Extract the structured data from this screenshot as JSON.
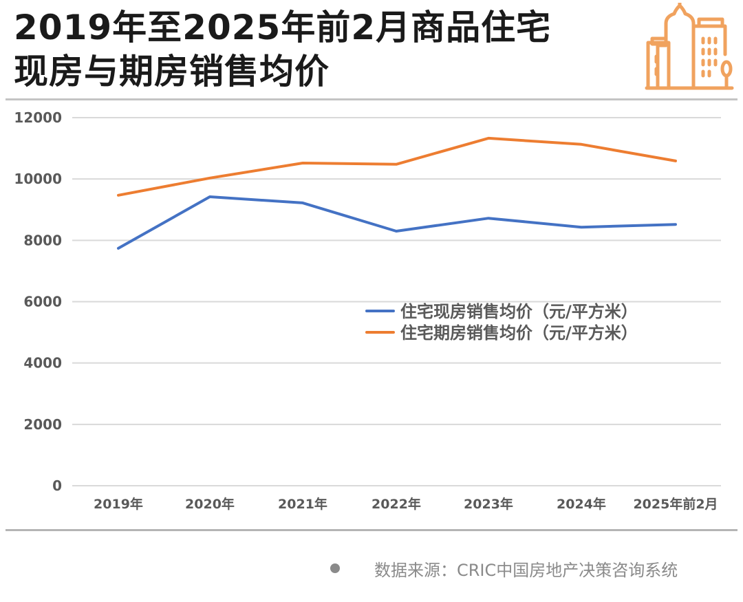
{
  "header": {
    "title_line1": "2019年至2025年前2月商品住宅",
    "title_line2": "现房与期房销售均价",
    "logo_icon": "city-buildings-icon",
    "accent_color": "#f0a25e"
  },
  "footer": {
    "source": "数据来源：CRIC中国房地产决策咨询系统"
  },
  "chart_data": {
    "type": "line",
    "title": "2019年至2025年前2月商品住宅现房与期房销售均价",
    "xlabel": "",
    "ylabel": "",
    "categories": [
      "2019年",
      "2020年",
      "2021年",
      "2022年",
      "2023年",
      "2024年",
      "2025年前2月"
    ],
    "ylim": [
      0,
      12000
    ],
    "yticks": [
      0,
      2000,
      4000,
      6000,
      8000,
      10000,
      12000
    ],
    "ytick_labels": [
      "0",
      "2000",
      "4000",
      "6000",
      "8000",
      "10000",
      "12000"
    ],
    "grid": true,
    "legend_position": "center-right",
    "series": [
      {
        "name": "住宅现房销售均价（元/平方米）",
        "color": "#4472c4",
        "values": [
          7740,
          9420,
          9220,
          8300,
          8720,
          8430,
          8520
        ]
      },
      {
        "name": "住宅期房销售均价（元/平方米）",
        "color": "#ed7d31",
        "values": [
          9470,
          10030,
          10520,
          10480,
          11330,
          11130,
          10590
        ]
      }
    ]
  }
}
